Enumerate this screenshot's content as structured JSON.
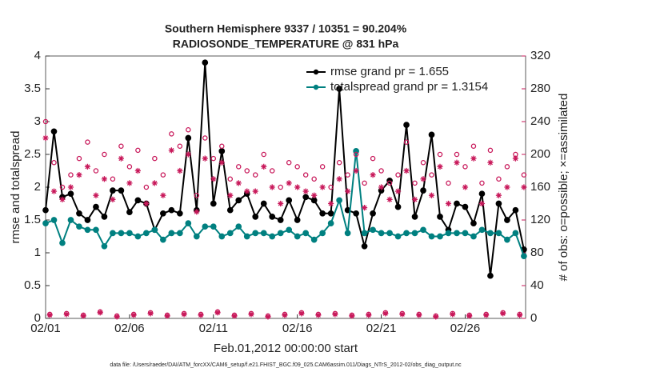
{
  "chart_data": {
    "type": "line",
    "title": "Southern Hemisphere 9337 / 10351 = 90.204%",
    "subtitle": "RADIOSONDE_TEMPERATURE @ 831 hPa",
    "xlabel": "Feb.01,2012 00:00:00 start",
    "ylabel": "rmse and totalspread",
    "y2label": "# of obs: o=possible; ×=assimilated",
    "footnote": "data file: /Users/raeder/DAI/ATM_forcXX/CAM6_setup/f.e21.FHIST_BGC.f09_025.CAM6assim.011/Diags_NTrS_2012-02/obs_diag_output.nc",
    "xlim": [
      0,
      28.6
    ],
    "xticks": [
      {
        "value": 0,
        "label": "02/01"
      },
      {
        "value": 5,
        "label": "02/06"
      },
      {
        "value": 10,
        "label": "02/11"
      },
      {
        "value": 15,
        "label": "02/16"
      },
      {
        "value": 20,
        "label": "02/21"
      },
      {
        "value": 25,
        "label": "02/26"
      }
    ],
    "ylim": [
      0,
      4
    ],
    "yticks": [
      0,
      0.5,
      1,
      1.5,
      2,
      2.5,
      3,
      3.5,
      4
    ],
    "y2lim": [
      0,
      320
    ],
    "y2ticks": [
      0,
      40,
      80,
      120,
      160,
      200,
      240,
      280,
      320
    ],
    "y2color": "#c8185a",
    "legend": "top-right",
    "x": [
      0,
      0.5,
      1,
      1.5,
      2,
      2.5,
      3,
      3.5,
      4,
      4.5,
      5,
      5.5,
      6,
      6.5,
      7,
      7.5,
      8,
      8.5,
      9,
      9.5,
      10,
      10.5,
      11,
      11.5,
      12,
      12.5,
      13,
      13.5,
      14,
      14.5,
      15,
      15.5,
      16,
      16.5,
      17,
      17.5,
      18,
      18.5,
      19,
      19.5,
      20,
      20.5,
      21,
      21.5,
      22,
      22.5,
      23,
      23.5,
      24,
      24.5,
      25,
      25.5,
      26,
      26.5,
      27,
      27.5,
      28,
      28.5
    ],
    "series": [
      {
        "name": "rmse grand pr = 1.655",
        "color": "#000000",
        "marker": "filled-circle",
        "line": true,
        "values": [
          1.65,
          2.85,
          1.85,
          1.9,
          1.6,
          1.5,
          1.7,
          1.55,
          1.95,
          1.95,
          1.62,
          1.8,
          1.75,
          1.35,
          1.6,
          1.65,
          1.6,
          2.75,
          1.65,
          3.9,
          1.75,
          2.55,
          1.65,
          1.8,
          1.9,
          1.55,
          1.75,
          1.55,
          1.5,
          1.8,
          1.5,
          1.85,
          1.8,
          1.6,
          1.6,
          3.5,
          1.65,
          1.6,
          1.1,
          1.6,
          1.95,
          2.1,
          1.7,
          2.95,
          1.55,
          1.95,
          2.8,
          1.55,
          1.35,
          1.75,
          1.7,
          1.45,
          1.9,
          0.65,
          1.75,
          1.5,
          1.65,
          1.05
        ]
      },
      {
        "name": "totalspread grand pr = 1.3154",
        "color": "#008080",
        "marker": "filled-circle",
        "line": true,
        "values": [
          1.45,
          1.5,
          1.15,
          1.5,
          1.4,
          1.35,
          1.35,
          1.1,
          1.3,
          1.3,
          1.3,
          1.25,
          1.3,
          1.35,
          1.2,
          1.3,
          1.3,
          1.45,
          1.25,
          1.4,
          1.4,
          1.25,
          1.3,
          1.4,
          1.25,
          1.3,
          1.3,
          1.25,
          1.3,
          1.35,
          1.25,
          1.3,
          1.2,
          1.3,
          1.45,
          1.8,
          1.3,
          2.55,
          1.3,
          1.35,
          1.3,
          1.3,
          1.25,
          1.3,
          1.3,
          1.35,
          1.25,
          1.25,
          1.3,
          1.3,
          1.3,
          1.25,
          1.35,
          1.3,
          1.3,
          1.2,
          1.3,
          0.95
        ]
      },
      {
        "color": "#c8185a",
        "marker": "open-circle",
        "line": false,
        "axis": "y2",
        "values": [
          240,
          190,
          160,
          175,
          195,
          215,
          180,
          200,
          170,
          210,
          185,
          205,
          160,
          195,
          175,
          225,
          210,
          230,
          150,
          220,
          195,
          210,
          170,
          185,
          180,
          175,
          200,
          180,
          160,
          190,
          185,
          175,
          170,
          185,
          160,
          190,
          175,
          200,
          165,
          195,
          180,
          165,
          175,
          215,
          165,
          190,
          175,
          200,
          165,
          200,
          185,
          210,
          165,
          205,
          170,
          185,
          200,
          175
        ]
      },
      {
        "color": "#c8185a",
        "marker": "asterisk",
        "line": false,
        "axis": "y2",
        "values": [
          220,
          155,
          145,
          160,
          175,
          185,
          150,
          170,
          145,
          195,
          165,
          180,
          140,
          165,
          150,
          205,
          180,
          200,
          130,
          195,
          170,
          190,
          150,
          165,
          155,
          155,
          185,
          160,
          140,
          165,
          160,
          155,
          150,
          160,
          140,
          170,
          155,
          180,
          135,
          175,
          160,
          145,
          155,
          180,
          145,
          170,
          150,
          185,
          140,
          190,
          160,
          195,
          140,
          190,
          150,
          160,
          195,
          160
        ]
      },
      {
        "color": "#c8185a",
        "marker": "open-circle",
        "line": false,
        "axis": "y2",
        "x": [
          0.25,
          1.25,
          2.25,
          3.25,
          4.25,
          5.25,
          6.25,
          7.25,
          8.25,
          9.25,
          10.25,
          11.25,
          12.25,
          13.25,
          14.25,
          15.25,
          16.25,
          17.25,
          18.25,
          19.25,
          20.25,
          21.25,
          22.25,
          23.25,
          24.25,
          25.25,
          26.25,
          27.25,
          28.25
        ],
        "values": [
          5,
          6,
          4,
          8,
          3,
          5,
          7,
          4,
          6,
          5,
          8,
          4,
          6,
          3,
          5,
          7,
          5,
          6,
          4,
          5,
          7,
          6,
          5,
          3,
          6,
          4,
          5,
          7,
          5
        ]
      },
      {
        "color": "#c8185a",
        "marker": "asterisk",
        "line": false,
        "axis": "y2",
        "x": [
          0.25,
          1.25,
          2.25,
          3.25,
          4.25,
          5.25,
          6.25,
          7.25,
          8.25,
          9.25,
          10.25,
          11.25,
          12.25,
          13.25,
          14.25,
          15.25,
          16.25,
          17.25,
          18.25,
          19.25,
          20.25,
          21.25,
          22.25,
          23.25,
          24.25,
          25.25,
          26.25,
          27.25,
          28.25
        ],
        "values": [
          4,
          5,
          3,
          7,
          2,
          4,
          6,
          3,
          5,
          4,
          7,
          3,
          5,
          2,
          4,
          6,
          4,
          5,
          3,
          4,
          6,
          5,
          4,
          2,
          5,
          3,
          4,
          6,
          4
        ]
      }
    ]
  }
}
